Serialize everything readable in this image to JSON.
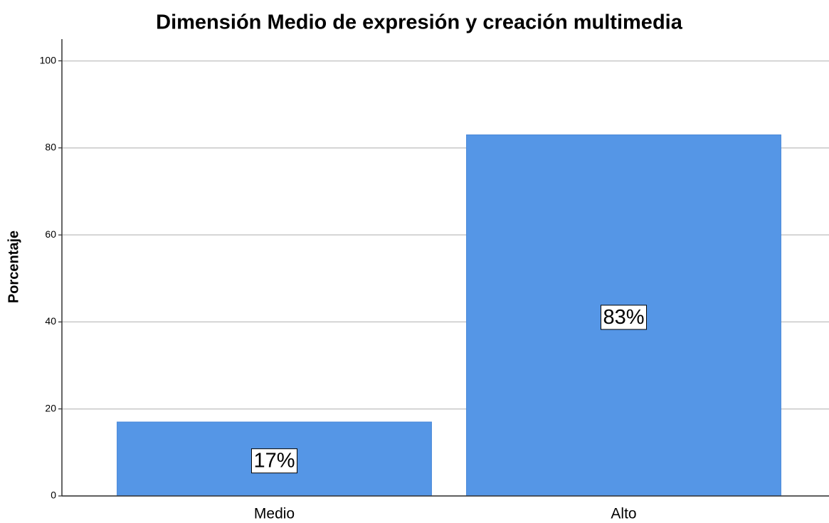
{
  "chart_data": {
    "type": "bar",
    "title": "Dimensión Medio de expresión y creación multimedia",
    "y_label": "Porcentaje",
    "categories": [
      "Medio",
      "Alto"
    ],
    "values": [
      17,
      83
    ],
    "value_labels": [
      "17%",
      "83%"
    ],
    "color": "#5596e6",
    "ylim": [
      0,
      105
    ],
    "yticks": [
      0,
      20,
      40,
      60,
      80,
      100
    ],
    "grid": true
  }
}
